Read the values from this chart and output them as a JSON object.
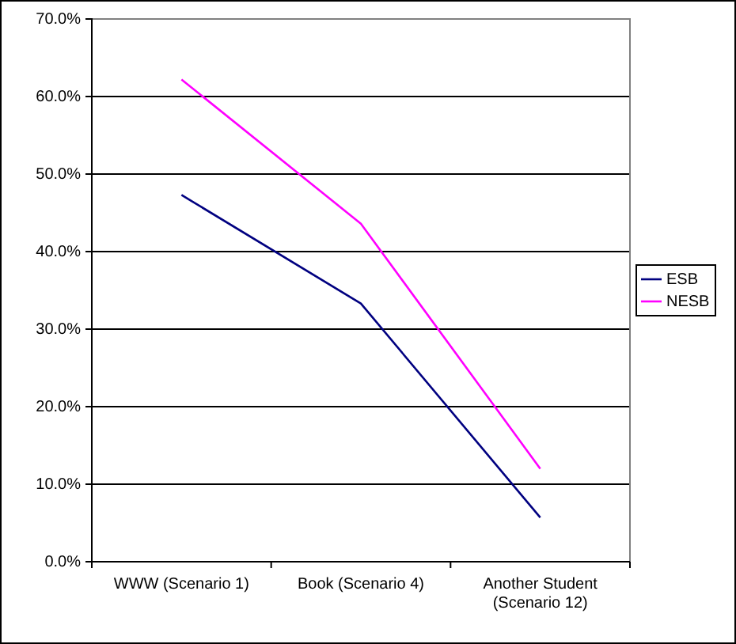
{
  "chart_data": {
    "type": "line",
    "categories": [
      "WWW (Scenario 1)",
      "Book (Scenario 4)",
      "Another Student (Scenario 12)"
    ],
    "series": [
      {
        "name": "ESB",
        "color": "#000080",
        "values": [
          47.3,
          33.3,
          5.7
        ]
      },
      {
        "name": "NESB",
        "color": "#ff00ff",
        "values": [
          62.2,
          43.6,
          12.0
        ]
      }
    ],
    "ylim": [
      0,
      70
    ],
    "yticks": [
      {
        "value": 0,
        "label": "0.0%"
      },
      {
        "value": 10,
        "label": "10.0%"
      },
      {
        "value": 20,
        "label": "20.0%"
      },
      {
        "value": 30,
        "label": "30.0%"
      },
      {
        "value": 40,
        "label": "40.0%"
      },
      {
        "value": 50,
        "label": "50.0%"
      },
      {
        "value": 60,
        "label": "60.0%"
      },
      {
        "value": 70,
        "label": "70.0%"
      }
    ],
    "grid": "y",
    "legend": "right",
    "marker": "none",
    "line_style": "solid"
  }
}
